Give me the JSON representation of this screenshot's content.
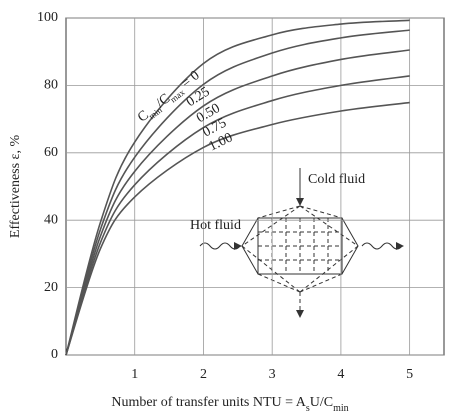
{
  "chart_data": {
    "type": "line",
    "y_label": "Effectiveness ε, %",
    "x_label": [
      {
        "text": "Number of transfer units NTU = A",
        "sub": false
      },
      {
        "text": "s",
        "sub": true
      },
      {
        "text": "U/C",
        "sub": false
      },
      {
        "text": "min",
        "sub": true
      }
    ],
    "curve_label_prefix": [
      {
        "text": "C",
        "sub": false
      },
      {
        "text": "min",
        "sub": true
      },
      {
        "text": "/C",
        "sub": false
      },
      {
        "text": "max",
        "sub": true
      },
      {
        "text": " = 0",
        "sub": false
      }
    ],
    "x": [
      0,
      0.5,
      1,
      2,
      3,
      4,
      5
    ],
    "series": [
      {
        "name": "0",
        "color": "#555555",
        "values": [
          0,
          39.3,
          63.2,
          86.5,
          95.0,
          98.2,
          99.3
        ]
      },
      {
        "name": "0.25",
        "color": "#555555",
        "values": [
          0,
          37.2,
          58.7,
          80.3,
          89.6,
          94.1,
          96.4
        ]
      },
      {
        "name": "0.50",
        "color": "#555555",
        "values": [
          0,
          35.2,
          54.5,
          73.9,
          82.8,
          87.7,
          90.5
        ]
      },
      {
        "name": "0.75",
        "color": "#555555",
        "values": [
          0,
          33.3,
          50.5,
          67.5,
          75.5,
          80.0,
          82.8
        ]
      },
      {
        "name": "1.00",
        "color": "#555555",
        "values": [
          0,
          31.5,
          46.9,
          61.6,
          68.4,
          72.4,
          74.9
        ]
      }
    ],
    "xlim": [
      0,
      5.5
    ],
    "ylim": [
      0,
      100
    ],
    "xticks": [
      1,
      2,
      3,
      4,
      5
    ],
    "yticks": [
      0,
      20,
      40,
      60,
      80,
      100
    ],
    "grid": true,
    "inset_labels": [
      "Cold fluid",
      "Hot fluid"
    ]
  }
}
